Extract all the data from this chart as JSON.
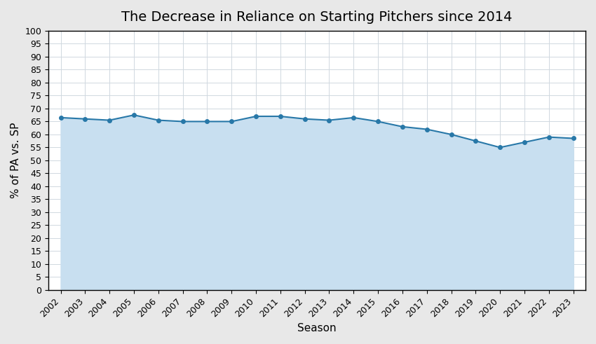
{
  "title": "The Decrease in Reliance on Starting Pitchers since 2014",
  "xlabel": "Season",
  "ylabel": "% of PA vs. SP",
  "seasons": [
    2002,
    2003,
    2004,
    2005,
    2006,
    2007,
    2008,
    2009,
    2010,
    2011,
    2012,
    2013,
    2014,
    2015,
    2016,
    2017,
    2018,
    2019,
    2020,
    2021,
    2022,
    2023
  ],
  "values": [
    66.5,
    66.0,
    65.5,
    67.5,
    65.5,
    65.0,
    65.0,
    65.0,
    67.0,
    67.0,
    66.0,
    65.5,
    66.5,
    65.0,
    63.0,
    62.0,
    60.0,
    57.5,
    55.0,
    57.0,
    59.0,
    58.5
  ],
  "line_color": "#2878a8",
  "fill_color": "#c8dff0",
  "marker": "o",
  "marker_size": 4,
  "ylim": [
    0,
    100
  ],
  "bg_color": "#e8e8e8",
  "plot_bg_color": "#ffffff",
  "grid_color": "#d0d8e0",
  "title_fontsize": 14,
  "label_fontsize": 11,
  "tick_fontsize": 9
}
